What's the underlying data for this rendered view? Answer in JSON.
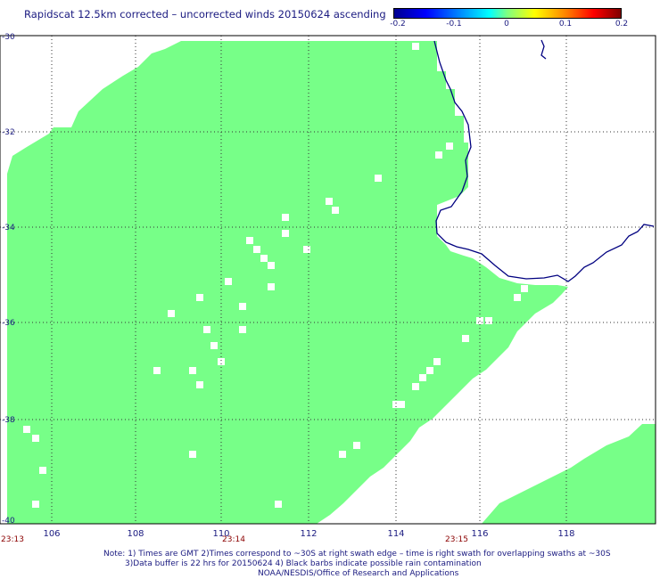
{
  "title": "Rapidscat 12.5km corrected – uncorrected winds 20150624 ascending",
  "colorbar": {
    "ticks": [
      "-0.2",
      "-0.1",
      "0",
      "0.1",
      "0.2"
    ],
    "colors": [
      "#00008f",
      "#0000ff",
      "#00ffff",
      "#80ff80",
      "#ffff00",
      "#ff0000",
      "#800000"
    ]
  },
  "map_data": {
    "lat_labels": [
      "-30",
      "-32",
      "-34",
      "-36",
      "-38",
      "-40"
    ],
    "lon_labels": [
      "106",
      "108",
      "110",
      "112",
      "114",
      "116",
      "118"
    ],
    "times": [
      "23:13",
      "23:14",
      "23:15"
    ],
    "lon_range": [
      105,
      120
    ],
    "lat_range": [
      -40,
      -30
    ],
    "fill_color": "#77ff88",
    "coast_color": "#000080"
  },
  "footer": {
    "line1": "Note: 1) Times are GMT 2)Times correspond to ~30S at right swath edge – time is right swath for overlapping swaths at ~30S",
    "line2": "3)Data buffer is 22 hrs for 20150624 4) Black barbs indicate possible rain contamination",
    "line3": "NOAA/NESDIS/Office of Research and Applications"
  }
}
